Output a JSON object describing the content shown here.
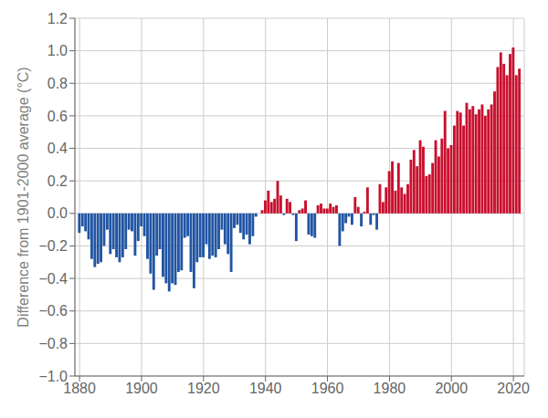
{
  "chart_data": {
    "type": "bar",
    "ylabel": "Difference from 1901-2000 average (°C)",
    "x": [
      1880,
      1881,
      1882,
      1883,
      1884,
      1885,
      1886,
      1887,
      1888,
      1889,
      1890,
      1891,
      1892,
      1893,
      1894,
      1895,
      1896,
      1897,
      1898,
      1899,
      1900,
      1901,
      1902,
      1903,
      1904,
      1905,
      1906,
      1907,
      1908,
      1909,
      1910,
      1911,
      1912,
      1913,
      1914,
      1915,
      1916,
      1917,
      1918,
      1919,
      1920,
      1921,
      1922,
      1923,
      1924,
      1925,
      1926,
      1927,
      1928,
      1929,
      1930,
      1931,
      1932,
      1933,
      1934,
      1935,
      1936,
      1937,
      1938,
      1939,
      1940,
      1941,
      1942,
      1943,
      1944,
      1945,
      1946,
      1947,
      1948,
      1949,
      1950,
      1951,
      1952,
      1953,
      1954,
      1955,
      1956,
      1957,
      1958,
      1959,
      1960,
      1961,
      1962,
      1963,
      1964,
      1965,
      1966,
      1967,
      1968,
      1969,
      1970,
      1971,
      1972,
      1973,
      1974,
      1975,
      1976,
      1977,
      1978,
      1979,
      1980,
      1981,
      1982,
      1983,
      1984,
      1985,
      1986,
      1987,
      1988,
      1989,
      1990,
      1991,
      1992,
      1993,
      1994,
      1995,
      1996,
      1997,
      1998,
      1999,
      2000,
      2001,
      2002,
      2003,
      2004,
      2005,
      2006,
      2007,
      2008,
      2009,
      2010,
      2011,
      2012,
      2013,
      2014,
      2015,
      2016,
      2017,
      2018,
      2019,
      2020,
      2021,
      2022
    ],
    "values": [
      -0.12,
      -0.08,
      -0.11,
      -0.16,
      -0.28,
      -0.33,
      -0.31,
      -0.3,
      -0.2,
      -0.1,
      -0.25,
      -0.22,
      -0.27,
      -0.3,
      -0.27,
      -0.22,
      -0.1,
      -0.11,
      -0.26,
      -0.17,
      -0.08,
      -0.14,
      -0.28,
      -0.37,
      -0.47,
      -0.26,
      -0.22,
      -0.39,
      -0.43,
      -0.48,
      -0.43,
      -0.44,
      -0.36,
      -0.35,
      -0.15,
      -0.14,
      -0.36,
      -0.46,
      -0.3,
      -0.27,
      -0.27,
      -0.19,
      -0.28,
      -0.26,
      -0.27,
      -0.22,
      -0.1,
      -0.19,
      -0.25,
      -0.36,
      -0.09,
      -0.07,
      -0.12,
      -0.16,
      -0.13,
      -0.19,
      -0.14,
      -0.02,
      0.0,
      0.02,
      0.08,
      0.14,
      0.07,
      0.09,
      0.2,
      0.11,
      -0.01,
      0.09,
      0.07,
      -0.01,
      -0.17,
      0.02,
      0.03,
      0.08,
      -0.13,
      -0.14,
      -0.15,
      0.05,
      0.06,
      0.03,
      0.03,
      0.06,
      0.04,
      0.05,
      -0.2,
      -0.11,
      -0.06,
      -0.02,
      -0.07,
      0.1,
      0.04,
      -0.08,
      0.01,
      0.16,
      -0.07,
      -0.01,
      -0.1,
      0.18,
      0.07,
      0.16,
      0.26,
      0.32,
      0.14,
      0.31,
      0.16,
      0.12,
      0.18,
      0.33,
      0.39,
      0.29,
      0.45,
      0.41,
      0.23,
      0.24,
      0.31,
      0.45,
      0.35,
      0.46,
      0.63,
      0.4,
      0.42,
      0.54,
      0.63,
      0.62,
      0.54,
      0.68,
      0.64,
      0.66,
      0.61,
      0.64,
      0.67,
      0.6,
      0.64,
      0.67,
      0.75,
      0.9,
      0.99,
      0.92,
      0.85,
      0.98,
      1.02,
      0.85,
      0.89
    ],
    "colors": [
      "#2155a3",
      "#2155a3",
      "#2155a3",
      "#2155a3",
      "#2155a3",
      "#2155a3",
      "#2155a3",
      "#2155a3",
      "#2155a3",
      "#2155a3",
      "#2155a3",
      "#2155a3",
      "#2155a3",
      "#2155a3",
      "#2155a3",
      "#2155a3",
      "#2155a3",
      "#2155a3",
      "#2155a3",
      "#2155a3",
      "#2155a3",
      "#2155a3",
      "#2155a3",
      "#2155a3",
      "#2155a3",
      "#2155a3",
      "#2155a3",
      "#2155a3",
      "#2155a3",
      "#2155a3",
      "#2155a3",
      "#2155a3",
      "#2155a3",
      "#2155a3",
      "#2155a3",
      "#2155a3",
      "#2155a3",
      "#2155a3",
      "#2155a3",
      "#2155a3",
      "#2155a3",
      "#2155a3",
      "#2155a3",
      "#2155a3",
      "#2155a3",
      "#2155a3",
      "#2155a3",
      "#2155a3",
      "#2155a3",
      "#2155a3",
      "#2155a3",
      "#2155a3",
      "#2155a3",
      "#2155a3",
      "#2155a3",
      "#2155a3",
      "#2155a3",
      "#2155a3",
      "#c8102e",
      "#c8102e",
      "#c8102e",
      "#c8102e",
      "#c8102e",
      "#c8102e",
      "#c8102e",
      "#c8102e",
      "#2155a3",
      "#c8102e",
      "#c8102e",
      "#2155a3",
      "#2155a3",
      "#c8102e",
      "#c8102e",
      "#c8102e",
      "#2155a3",
      "#2155a3",
      "#2155a3",
      "#c8102e",
      "#c8102e",
      "#c8102e",
      "#c8102e",
      "#c8102e",
      "#c8102e",
      "#c8102e",
      "#2155a3",
      "#2155a3",
      "#2155a3",
      "#2155a3",
      "#2155a3",
      "#c8102e",
      "#c8102e",
      "#2155a3",
      "#c8102e",
      "#c8102e",
      "#2155a3",
      "#2155a3",
      "#2155a3",
      "#c8102e",
      "#c8102e",
      "#c8102e",
      "#c8102e",
      "#c8102e",
      "#c8102e",
      "#c8102e",
      "#c8102e",
      "#c8102e",
      "#c8102e",
      "#c8102e",
      "#c8102e",
      "#c8102e",
      "#c8102e",
      "#c8102e",
      "#c8102e",
      "#c8102e",
      "#c8102e",
      "#c8102e",
      "#c8102e",
      "#c8102e",
      "#c8102e",
      "#c8102e",
      "#c8102e",
      "#c8102e",
      "#c8102e",
      "#c8102e",
      "#c8102e",
      "#c8102e",
      "#c8102e",
      "#c8102e",
      "#c8102e",
      "#c8102e",
      "#c8102e",
      "#c8102e",
      "#c8102e",
      "#c8102e",
      "#c8102e",
      "#c8102e",
      "#c8102e",
      "#c8102e",
      "#c8102e",
      "#c8102e",
      "#c8102e",
      "#c8102e",
      "#c8102e"
    ],
    "xlim": [
      1878.5,
      2023.5
    ],
    "xticks": [
      1880,
      1900,
      1920,
      1940,
      1960,
      1980,
      2000,
      2020
    ],
    "ylim": [
      -1.0,
      1.2
    ],
    "yticks": [
      {
        "value": -1.0,
        "label": "−1.0"
      },
      {
        "value": -0.8,
        "label": "−0.8"
      },
      {
        "value": -0.6,
        "label": "−0.6"
      },
      {
        "value": -0.4,
        "label": "−0.4"
      },
      {
        "value": -0.2,
        "label": "−0.2"
      },
      {
        "value": 0.0,
        "label": "0.0"
      },
      0.2,
      0.4,
      0.6,
      0.8,
      {
        "value": 1.0,
        "label": "1.0"
      },
      {
        "value": 1.2,
        "label": "1.2"
      }
    ],
    "grid": true
  }
}
